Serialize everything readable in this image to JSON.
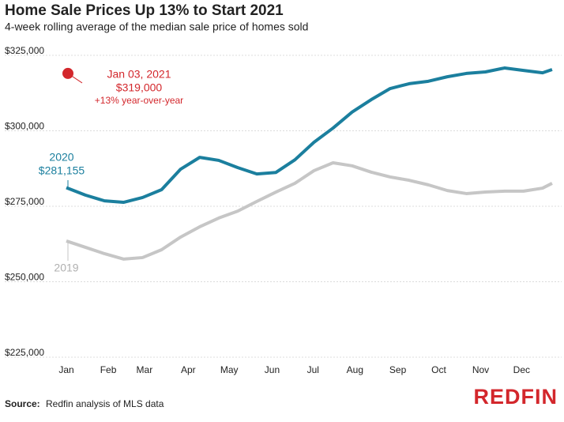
{
  "chart_data": {
    "type": "line",
    "title": "Home Sale Prices Up 13% to Start 2021",
    "subtitle": "4-week rolling average of the median sale price of homes sold",
    "x": [
      0,
      2,
      4,
      6,
      8,
      10,
      12,
      14,
      16,
      18,
      20,
      22,
      24,
      26,
      28,
      30,
      32,
      34,
      36,
      38,
      40,
      42,
      44,
      46,
      48,
      50,
      51
    ],
    "xlim": [
      0,
      52
    ],
    "xticks": [
      {
        "value": 0,
        "label": "Jan"
      },
      {
        "value": 4.4,
        "label": "Feb"
      },
      {
        "value": 8.2,
        "label": "Mar"
      },
      {
        "value": 12.8,
        "label": "Apr"
      },
      {
        "value": 17.1,
        "label": "May"
      },
      {
        "value": 21.6,
        "label": "Jun"
      },
      {
        "value": 25.9,
        "label": "Jul"
      },
      {
        "value": 30.3,
        "label": "Aug"
      },
      {
        "value": 34.8,
        "label": "Sep"
      },
      {
        "value": 39.1,
        "label": "Oct"
      },
      {
        "value": 43.5,
        "label": "Nov"
      },
      {
        "value": 47.8,
        "label": "Dec"
      }
    ],
    "ylim": [
      225000,
      325000
    ],
    "yticks": [
      {
        "value": 225000,
        "label": "$225,000"
      },
      {
        "value": 250000,
        "label": "$250,000"
      },
      {
        "value": 275000,
        "label": "$275,000"
      },
      {
        "value": 300000,
        "label": "$300,000"
      },
      {
        "value": 325000,
        "label": "$325,000"
      }
    ],
    "grid": true,
    "series": [
      {
        "name": "2020",
        "color": "#1b7f9e",
        "start_label": "$281,155",
        "values": [
          281155,
          278700,
          276800,
          276300,
          277900,
          280500,
          287300,
          291200,
          290200,
          287800,
          285700,
          286200,
          290400,
          296200,
          300900,
          306200,
          310300,
          314000,
          315600,
          316400,
          317900,
          319000,
          319500,
          320800,
          320000,
          319200,
          320300
        ]
      },
      {
        "name": "2019",
        "color": "#c6c6c6",
        "values": [
          263500,
          261400,
          259300,
          257500,
          258000,
          260600,
          264800,
          268200,
          271100,
          273400,
          276600,
          279700,
          282600,
          286800,
          289400,
          288400,
          286300,
          284700,
          283600,
          282100,
          280200,
          279200,
          279700,
          280000,
          280000,
          281000,
          282600
        ]
      }
    ],
    "highlight": {
      "x": 0,
      "value": 319000,
      "color": "#d3272c",
      "date": "Jan 03, 2021",
      "label": "$319,000",
      "note": "+13% year-over-year"
    },
    "source_label": "Source:",
    "source": "Redfin analysis of MLS data",
    "logo": "REDFIN"
  }
}
